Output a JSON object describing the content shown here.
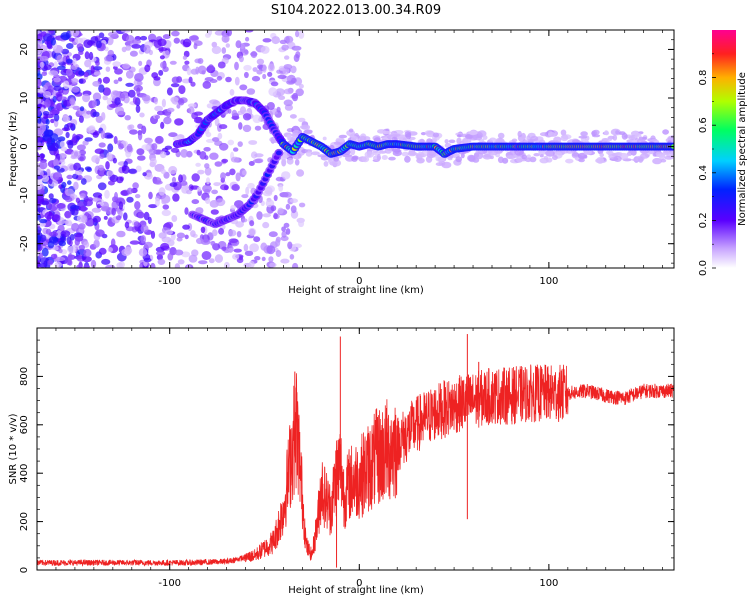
{
  "title": "S104.2022.013.00.34.R09",
  "colors": {
    "snr_line": "#ee2222",
    "axis": "#000000",
    "spectrogram_low": "#d8c6f0",
    "spectrogram_mid": "#7a1cf0",
    "spectrogram_high": "#ff1a1a"
  },
  "chart_data": [
    {
      "type": "heatmap",
      "xlabel": "Height of straight line (km)",
      "ylabel": "Frequency (Hz)",
      "xlim": [
        -170,
        166
      ],
      "ylim": [
        -25,
        24
      ],
      "x_ticks": [
        -100,
        0,
        100
      ],
      "y_ticks": [
        -20,
        -10,
        0,
        10,
        20
      ],
      "ridge": {
        "description_free": true,
        "x": [
          -96,
          -90,
          -85,
          -80,
          -75,
          -70,
          -65,
          -60,
          -55,
          -50,
          -45,
          -40,
          -35,
          -30,
          -25,
          -20,
          -15,
          -10,
          -5,
          0,
          5,
          10,
          15,
          20,
          30,
          40,
          45,
          50,
          60,
          70,
          80,
          90,
          100,
          120,
          140,
          166
        ],
        "y": [
          0.5,
          1.0,
          2.5,
          5.5,
          7.0,
          8.5,
          9.5,
          9.5,
          9.0,
          7.0,
          3.5,
          0.5,
          -1.0,
          2.0,
          1.0,
          0.0,
          -1.5,
          -1.0,
          0.5,
          0.0,
          0.5,
          0.0,
          0.5,
          0.5,
          0.0,
          0.0,
          -1.5,
          -0.5,
          0.0,
          0.0,
          0.0,
          0.0,
          0.0,
          0.0,
          0.0,
          0.0
        ]
      },
      "lower_arm": {
        "x": [
          -88,
          -82,
          -76,
          -70,
          -64,
          -58,
          -54,
          -50,
          -46,
          -42
        ],
        "y": [
          -14,
          -15,
          -16,
          -15,
          -14,
          -12,
          -10,
          -7,
          -4,
          -1
        ]
      },
      "colorbar": {
        "label": "Normalized spectral amplitude",
        "range": [
          0.0,
          1.0
        ],
        "ticks": [
          0.0,
          0.2,
          0.4,
          0.6,
          0.8
        ],
        "tick_labels": [
          "0.0",
          "0.2",
          "0.4",
          "0.6",
          "0.8"
        ]
      }
    },
    {
      "type": "line",
      "xlabel": "Height of straight line (km)",
      "ylabel": "SNR (10 * v/v)",
      "xlim": [
        -170,
        166
      ],
      "ylim": [
        0,
        1000
      ],
      "x_ticks": [
        -100,
        0,
        100
      ],
      "y_ticks": [
        0,
        200,
        400,
        600,
        800
      ],
      "envelope": {
        "x": [
          -170,
          -140,
          -110,
          -90,
          -70,
          -55,
          -45,
          -40,
          -35,
          -33,
          -30,
          -28,
          -25,
          -22,
          -20,
          -18,
          -15,
          -12,
          -10,
          -9,
          -8,
          -5,
          0,
          10,
          20,
          30,
          40,
          50,
          60,
          70,
          80,
          90,
          100,
          110,
          120,
          130,
          140,
          150,
          160,
          166
        ],
        "y": [
          30,
          30,
          30,
          30,
          35,
          60,
          120,
          250,
          520,
          600,
          300,
          100,
          60,
          200,
          350,
          300,
          250,
          400,
          430,
          380,
          300,
          360,
          380,
          470,
          520,
          600,
          650,
          680,
          700,
          720,
          720,
          730,
          730,
          730,
          740,
          720,
          710,
          740,
          740,
          740
        ]
      },
      "spikes": {
        "x": [
          -34,
          -10,
          57,
          63
        ],
        "y": [
          820,
          965,
          975,
          860
        ]
      },
      "dips": {
        "x": [
          -12,
          57
        ],
        "y": [
          10,
          210
        ]
      }
    }
  ]
}
